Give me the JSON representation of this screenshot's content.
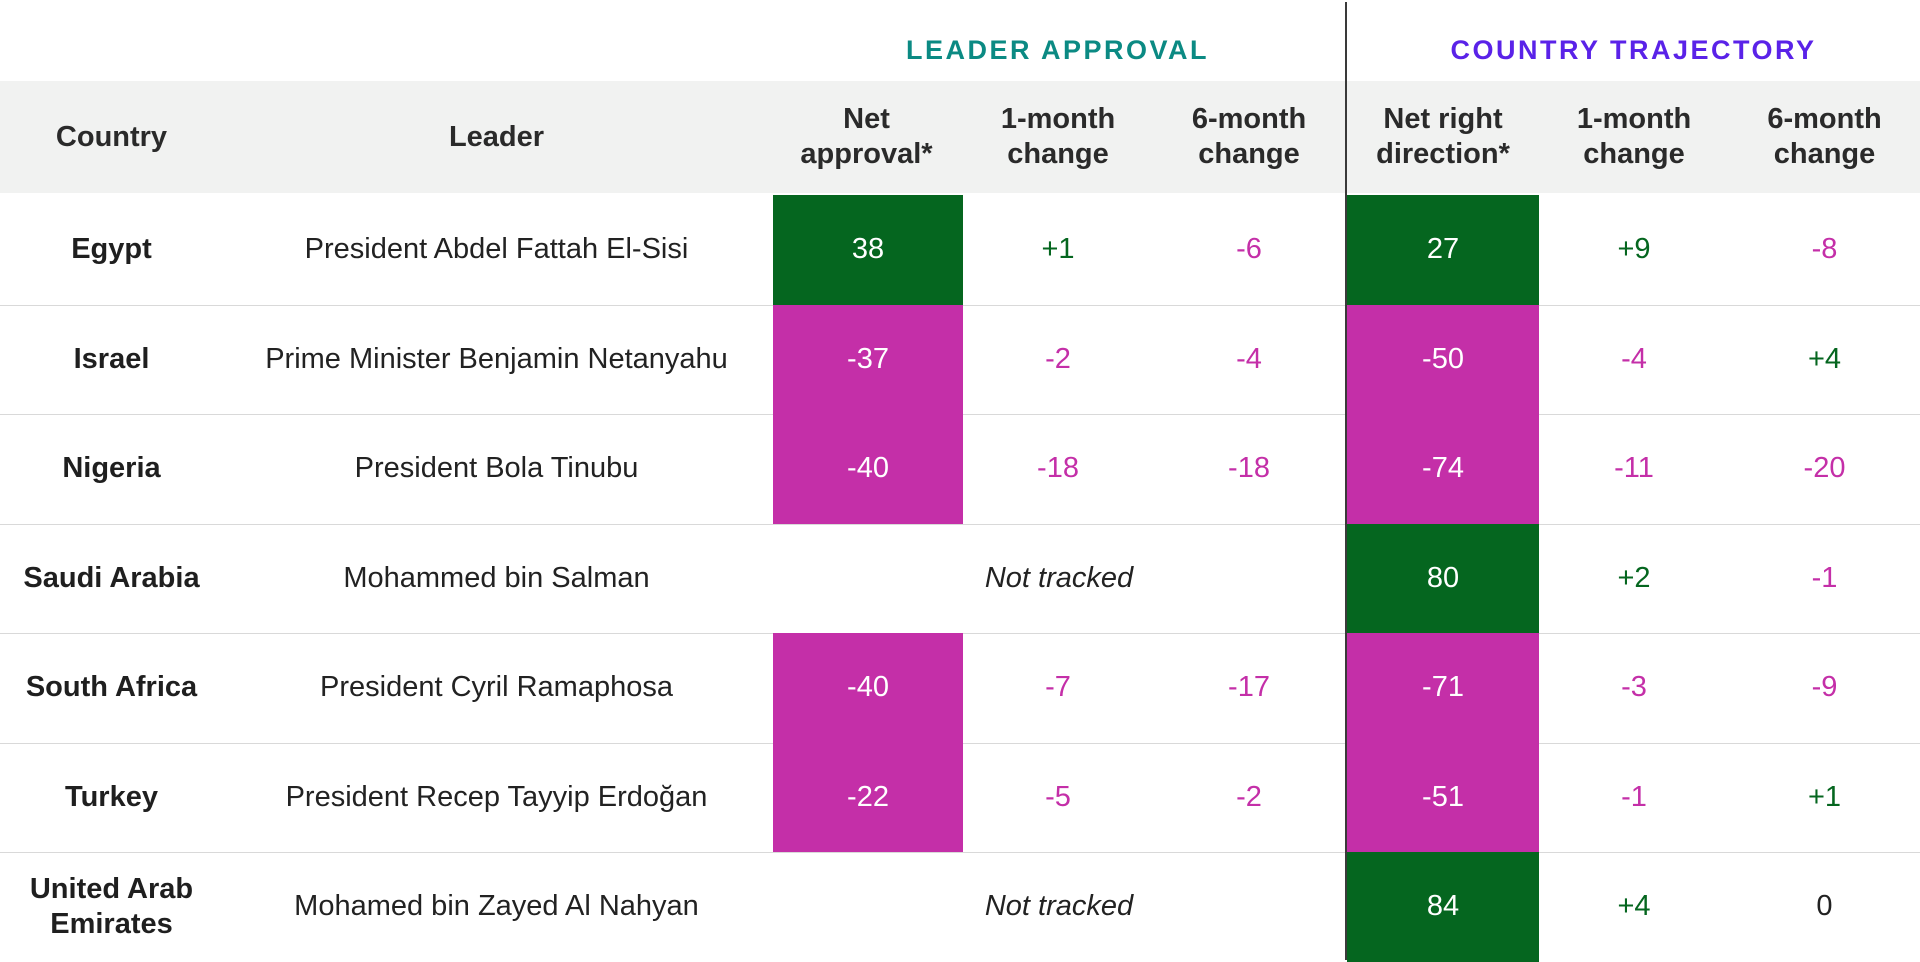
{
  "colors": {
    "positive": "#05661f",
    "negative": "#c42fa8",
    "neutral": "#222222",
    "leader_title": "#0b8a83",
    "trajectory_title": "#5a22e8",
    "header_band": "#f1f2f1"
  },
  "groups": {
    "leader_approval": "LEADER APPROVAL",
    "country_trajectory": "COUNTRY TRAJECTORY"
  },
  "headers": {
    "country": "Country",
    "leader": "Leader",
    "net_approval": "Net\napproval*",
    "la_1m": "1-month\nchange",
    "la_6m": "6-month\nchange",
    "net_right": "Net right\ndirection*",
    "ct_1m": "1-month\nchange",
    "ct_6m": "6-month\nchange"
  },
  "not_tracked_label": "Not tracked",
  "chart_data": {
    "type": "table",
    "columns": [
      "Country",
      "Leader",
      "Net approval*",
      "1-month change",
      "6-month change",
      "Net right direction*",
      "1-month change",
      "6-month change"
    ],
    "rows": [
      {
        "country": "Egypt",
        "leader": "President Abdel Fattah El-Sisi",
        "net_approval": "38",
        "la_1m": "+1",
        "la_6m": "-6",
        "net_right": "27",
        "ct_1m": "+9",
        "ct_6m": "-8"
      },
      {
        "country": "Israel",
        "leader": "Prime Minister Benjamin Netanyahu",
        "net_approval": "-37",
        "la_1m": "-2",
        "la_6m": "-4",
        "net_right": "-50",
        "ct_1m": "-4",
        "ct_6m": "+4"
      },
      {
        "country": "Nigeria",
        "leader": "President Bola Tinubu",
        "net_approval": "-40",
        "la_1m": "-18",
        "la_6m": "-18",
        "net_right": "-74",
        "ct_1m": "-11",
        "ct_6m": "-20"
      },
      {
        "country": "Saudi Arabia",
        "leader": "Mohammed bin Salman",
        "net_approval": null,
        "la_1m": null,
        "la_6m": null,
        "net_right": "80",
        "ct_1m": "+2",
        "ct_6m": "-1"
      },
      {
        "country": "South Africa",
        "leader": "President Cyril Ramaphosa",
        "net_approval": "-40",
        "la_1m": "-7",
        "la_6m": "-17",
        "net_right": "-71",
        "ct_1m": "-3",
        "ct_6m": "-9"
      },
      {
        "country": "Turkey",
        "leader": "President Recep Tayyip Erdoğan",
        "net_approval": "-22",
        "la_1m": "-5",
        "la_6m": "-2",
        "net_right": "-51",
        "ct_1m": "-1",
        "ct_6m": "+1"
      },
      {
        "country": "United Arab\nEmirates",
        "leader": "Mohamed bin Zayed Al Nahyan",
        "net_approval": null,
        "la_1m": null,
        "la_6m": null,
        "net_right": "84",
        "ct_1m": "+4",
        "ct_6m": "0"
      }
    ]
  }
}
